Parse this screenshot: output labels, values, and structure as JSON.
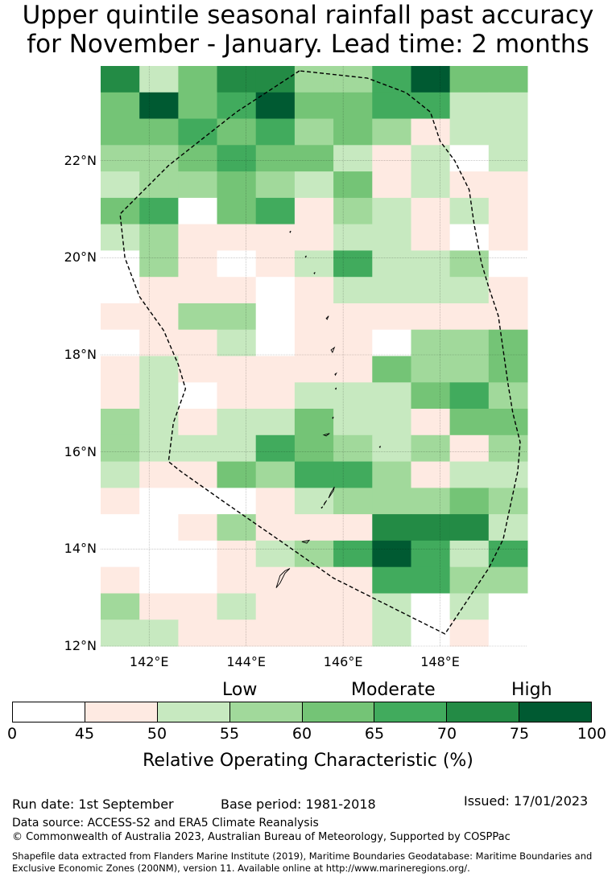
{
  "title": {
    "line1": "Upper quintile seasonal rainfall past accuracy",
    "line2": "for November - January. Lead time: 2 months"
  },
  "map": {
    "lat_labels": [
      "22°N",
      "20°N",
      "18°N",
      "16°N",
      "14°N",
      "12°N"
    ],
    "lon_labels": [
      "142°E",
      "144°E",
      "146°E",
      "148°E"
    ],
    "lat_range": [
      12,
      23.95
    ],
    "lon_range": [
      141,
      149.8
    ],
    "cell_degrees": 0.8,
    "grid_levels": [
      [
        6,
        2,
        4,
        6,
        6,
        3,
        3,
        5,
        7,
        4,
        4
      ],
      [
        4,
        7,
        4,
        5,
        7,
        4,
        4,
        5,
        5,
        2,
        2
      ],
      [
        4,
        4,
        5,
        4,
        5,
        3,
        4,
        3,
        1,
        2,
        2
      ],
      [
        3,
        3,
        4,
        5,
        4,
        4,
        2,
        1,
        2,
        0,
        2
      ],
      [
        2,
        3,
        3,
        4,
        3,
        2,
        4,
        1,
        2,
        1,
        1
      ],
      [
        4,
        5,
        0,
        4,
        5,
        1,
        3,
        2,
        1,
        2,
        1
      ],
      [
        2,
        3,
        1,
        1,
        1,
        1,
        2,
        2,
        1,
        0,
        1
      ],
      [
        0,
        3,
        1,
        0,
        1,
        2,
        5,
        2,
        2,
        3,
        0
      ],
      [
        0,
        1,
        1,
        1,
        0,
        1,
        2,
        2,
        2,
        2,
        1
      ],
      [
        1,
        1,
        3,
        3,
        0,
        1,
        1,
        1,
        1,
        1,
        1
      ],
      [
        0,
        1,
        1,
        2,
        0,
        1,
        1,
        0,
        3,
        3,
        4
      ],
      [
        1,
        2,
        1,
        1,
        1,
        1,
        1,
        4,
        3,
        3,
        4
      ],
      [
        1,
        2,
        0,
        1,
        1,
        2,
        2,
        2,
        4,
        5,
        3
      ],
      [
        3,
        2,
        1,
        2,
        2,
        4,
        2,
        2,
        1,
        4,
        4
      ],
      [
        3,
        2,
        2,
        2,
        5,
        4,
        3,
        2,
        3,
        1,
        3
      ],
      [
        2,
        1,
        1,
        4,
        3,
        5,
        5,
        3,
        1,
        2,
        2
      ],
      [
        1,
        0,
        0,
        0,
        1,
        2,
        3,
        3,
        3,
        4,
        3
      ],
      [
        0,
        0,
        1,
        3,
        1,
        1,
        1,
        6,
        6,
        6,
        2
      ],
      [
        0,
        0,
        0,
        1,
        2,
        3,
        5,
        7,
        5,
        2,
        5
      ],
      [
        1,
        0,
        0,
        1,
        1,
        1,
        1,
        5,
        5,
        3,
        3
      ],
      [
        3,
        1,
        1,
        2,
        1,
        1,
        1,
        2,
        0,
        2,
        0
      ],
      [
        2,
        2,
        1,
        1,
        1,
        1,
        1,
        2,
        0,
        1,
        0
      ]
    ],
    "eez_boundary": [
      [
        145.1,
        23.85
      ],
      [
        143.8,
        23.0
      ],
      [
        142.4,
        21.9
      ],
      [
        141.4,
        20.9
      ],
      [
        141.5,
        20.0
      ],
      [
        141.8,
        19.2
      ],
      [
        142.3,
        18.5
      ],
      [
        142.6,
        17.8
      ],
      [
        142.75,
        17.3
      ],
      [
        142.5,
        16.6
      ],
      [
        142.4,
        15.8
      ],
      [
        142.65,
        15.6
      ],
      [
        143.5,
        15.0
      ],
      [
        144.8,
        14.1
      ],
      [
        145.8,
        13.4
      ],
      [
        147.2,
        12.7
      ],
      [
        148.1,
        12.25
      ],
      [
        148.6,
        13.0
      ],
      [
        149.0,
        13.6
      ],
      [
        149.3,
        14.2
      ],
      [
        149.45,
        14.9
      ],
      [
        149.6,
        15.6
      ],
      [
        149.65,
        16.2
      ],
      [
        149.5,
        16.8
      ],
      [
        149.4,
        17.4
      ],
      [
        149.3,
        18.1
      ],
      [
        149.2,
        18.8
      ],
      [
        149.0,
        19.4
      ],
      [
        148.85,
        19.9
      ],
      [
        148.7,
        20.7
      ],
      [
        148.6,
        21.4
      ],
      [
        148.3,
        22.0
      ],
      [
        148.0,
        22.4
      ],
      [
        147.8,
        23.0
      ],
      [
        147.3,
        23.4
      ],
      [
        146.5,
        23.7
      ],
      [
        145.1,
        23.85
      ]
    ],
    "islands": [
      {
        "name": "Guam",
        "pts": [
          [
            144.62,
            13.2
          ],
          [
            144.7,
            13.3
          ],
          [
            144.8,
            13.5
          ],
          [
            144.9,
            13.6
          ],
          [
            144.8,
            13.55
          ],
          [
            144.7,
            13.45
          ],
          [
            144.62,
            13.2
          ]
        ]
      },
      {
        "name": "Rota",
        "pts": [
          [
            145.15,
            14.15
          ],
          [
            145.3,
            14.18
          ],
          [
            145.25,
            14.12
          ],
          [
            145.15,
            14.15
          ]
        ]
      },
      {
        "name": "Saipan",
        "pts": [
          [
            145.7,
            15.05
          ],
          [
            145.8,
            15.2
          ],
          [
            145.82,
            15.28
          ],
          [
            145.74,
            15.15
          ],
          [
            145.7,
            15.05
          ]
        ]
      },
      {
        "name": "Tinian",
        "pts": [
          [
            145.6,
            14.9
          ],
          [
            145.66,
            15.0
          ],
          [
            145.62,
            14.95
          ],
          [
            145.6,
            14.9
          ]
        ]
      },
      {
        "name": "Aguijan",
        "pts": [
          [
            145.55,
            14.85
          ],
          [
            145.58,
            14.87
          ],
          [
            145.56,
            14.84
          ],
          [
            145.55,
            14.85
          ]
        ]
      },
      {
        "name": "Anatahan",
        "pts": [
          [
            145.6,
            16.35
          ],
          [
            145.72,
            16.38
          ],
          [
            145.65,
            16.33
          ],
          [
            145.6,
            16.35
          ]
        ]
      },
      {
        "name": "Sarigan",
        "pts": [
          [
            145.78,
            16.7
          ],
          [
            145.8,
            16.72
          ],
          [
            145.79,
            16.69
          ],
          [
            145.78,
            16.7
          ]
        ]
      },
      {
        "name": "Guguan",
        "pts": [
          [
            145.84,
            17.3
          ],
          [
            145.86,
            17.32
          ],
          [
            145.85,
            17.29
          ],
          [
            145.84,
            17.3
          ]
        ]
      },
      {
        "name": "Alamagan",
        "pts": [
          [
            145.83,
            17.6
          ],
          [
            145.86,
            17.62
          ],
          [
            145.84,
            17.58
          ],
          [
            145.83,
            17.6
          ]
        ]
      },
      {
        "name": "Pagan",
        "pts": [
          [
            145.75,
            18.1
          ],
          [
            145.82,
            18.15
          ],
          [
            145.78,
            18.05
          ],
          [
            145.75,
            18.1
          ]
        ]
      },
      {
        "name": "Agrihan",
        "pts": [
          [
            145.65,
            18.75
          ],
          [
            145.7,
            18.8
          ],
          [
            145.67,
            18.73
          ],
          [
            145.65,
            18.75
          ]
        ]
      },
      {
        "name": "Asuncion",
        "pts": [
          [
            145.4,
            19.68
          ],
          [
            145.42,
            19.7
          ],
          [
            145.41,
            19.67
          ],
          [
            145.4,
            19.68
          ]
        ]
      },
      {
        "name": "Maug",
        "pts": [
          [
            145.22,
            20.02
          ],
          [
            145.24,
            20.04
          ],
          [
            145.23,
            20.01
          ],
          [
            145.22,
            20.02
          ]
        ]
      },
      {
        "name": "Uracas",
        "pts": [
          [
            144.9,
            20.53
          ],
          [
            144.92,
            20.55
          ],
          [
            144.91,
            20.52
          ],
          [
            144.9,
            20.53
          ]
        ]
      },
      {
        "name": "Fais",
        "pts": [
          [
            146.75,
            16.1
          ],
          [
            146.77,
            16.12
          ],
          [
            146.76,
            16.09
          ],
          [
            146.75,
            16.1
          ]
        ]
      }
    ]
  },
  "colorbar": {
    "colors": [
      "#ffffff",
      "#feeae2",
      "#c7e9c0",
      "#a1d99b",
      "#74c476",
      "#41ab5d",
      "#238b45",
      "#005a32"
    ],
    "ticks": [
      "0",
      "45",
      "50",
      "55",
      "60",
      "65",
      "70",
      "75",
      "100"
    ],
    "categories": {
      "low": "Low",
      "moderate": "Moderate",
      "high": "High"
    },
    "title": "Relative Operating Characteristic (%)"
  },
  "footer": {
    "run_date": "Run date: 1st September",
    "base_period": "Base period: 1981-2018",
    "issued": "Issued: 17/01/2023",
    "data_source": "Data source: ACCESS-S2 and ERA5 Climate Reanalysis",
    "copyright": "© Commonwealth of Australia 2023, Australian Bureau of Meteorology, Supported by COSPPac",
    "shapefile": "Shapefile data extracted from Flanders Marine Institute (2019), Maritime Boundaries Geodatabase: Maritime Boundaries and Exclusive Economic Zones (200NM), version 11. Available online at http://www.marineregions.org/."
  }
}
